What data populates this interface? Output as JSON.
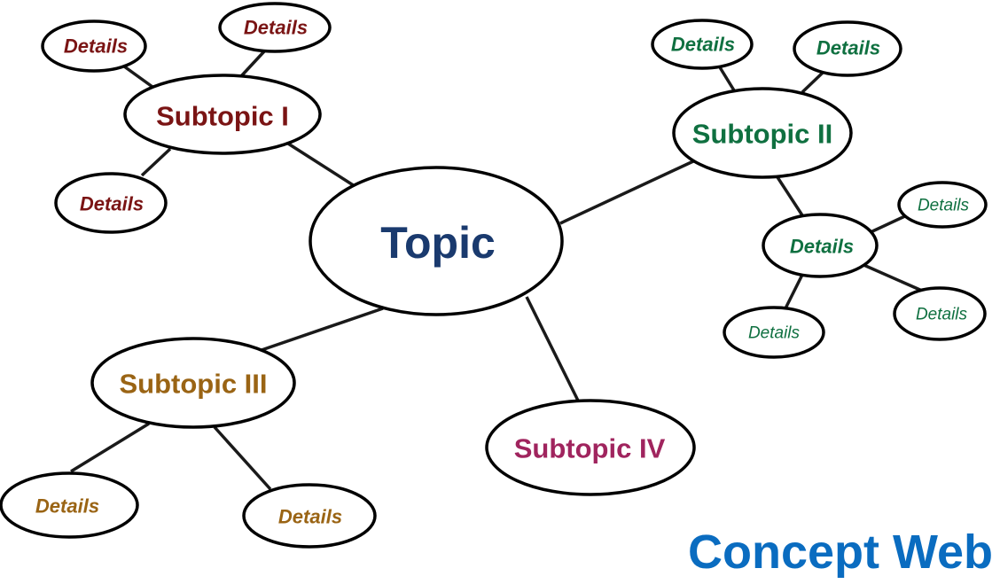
{
  "colors": {
    "topic": "#1a3a6e",
    "subtopic_1": "#7a1414",
    "subtopic_2": "#0f7040",
    "subtopic_3": "#9a6414",
    "subtopic_4": "#a0245e",
    "footer": "#0a6cc0"
  },
  "topic": {
    "label": "Topic"
  },
  "subtopics": [
    {
      "key": "s1",
      "label": "Subtopic I",
      "details": [
        "Details",
        "Details",
        "Details"
      ]
    },
    {
      "key": "s2",
      "label": "Subtopic II",
      "details": [
        "Details",
        "Details",
        "Details",
        "Details",
        "Details",
        "Details"
      ]
    },
    {
      "key": "s3",
      "label": "Subtopic III",
      "details": [
        "Details",
        "Details"
      ]
    },
    {
      "key": "s4",
      "label": "Subtopic IV",
      "details": []
    }
  ],
  "footer": {
    "title": "Concept Web"
  }
}
